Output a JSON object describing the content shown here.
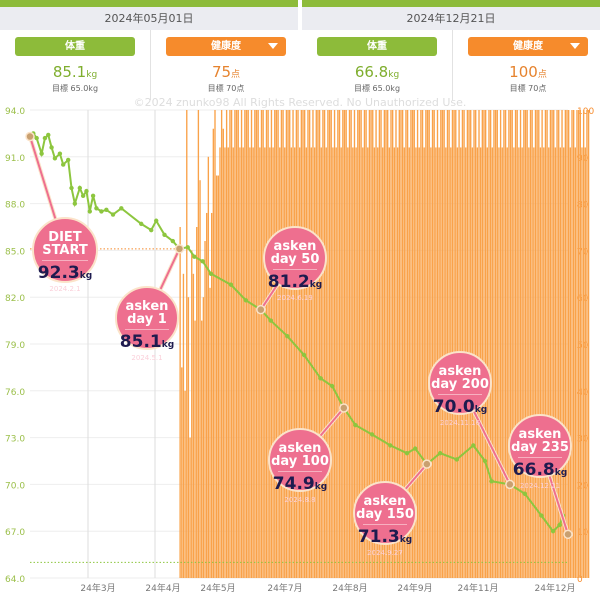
{
  "header": {
    "left_date": "2024年05月01日",
    "right_date": "2024年12月21日"
  },
  "cards": [
    {
      "label": "体重",
      "value": "85.1",
      "unit": "kg",
      "target": "目標 65.0kg",
      "color": "#8dbb3a",
      "dropdown": false
    },
    {
      "label": "健康度",
      "value": "75",
      "unit": "点",
      "target": "目標 70点",
      "color": "#f68b2c",
      "dropdown": true
    },
    {
      "label": "体重",
      "value": "66.8",
      "unit": "kg",
      "target": "目標 65.0kg",
      "color": "#8dbb3a",
      "dropdown": false
    },
    {
      "label": "健康度",
      "value": "100",
      "unit": "点",
      "target": "目標 70点",
      "color": "#f68b2c",
      "dropdown": true
    }
  ],
  "watermark": "©2024 znunko98  All Rights Reserved. No Unauthorized Use.",
  "chart_data": {
    "type": "line+bar",
    "x_range": [
      "2024-02-01",
      "2024-12-21"
    ],
    "x_ticks": [
      "24年3月",
      "24年4月",
      "24年5月",
      "24年7月",
      "24年8月",
      "24年9月",
      "24年11月",
      "24年12月"
    ],
    "y_left": {
      "range": [
        64,
        94
      ],
      "ticks": [
        "94.0",
        "91.0",
        "88.0",
        "85.0",
        "82.0",
        "79.0",
        "76.0",
        "73.0",
        "70.0",
        "67.0",
        "64.0"
      ],
      "color": "#9bbf4a"
    },
    "y_right": {
      "range": [
        0,
        100
      ],
      "ticks": [
        "100",
        "90",
        "80",
        "70",
        "60",
        "50",
        "40",
        "30",
        "20",
        "10",
        "0"
      ],
      "color": "#f68b2c"
    },
    "target_weight": 65.0,
    "weight_color": "#8dc63f",
    "bar_color": "#f9a24a",
    "weight": [
      [
        "2024-02-01",
        92.3
      ],
      [
        "2024-02-03",
        92.5
      ],
      [
        "2024-02-05",
        92.2
      ],
      [
        "2024-02-08",
        91.2
      ],
      [
        "2024-02-10",
        92.2
      ],
      [
        "2024-02-12",
        92.4
      ],
      [
        "2024-02-14",
        91.6
      ],
      [
        "2024-02-16",
        90.9
      ],
      [
        "2024-02-19",
        91.2
      ],
      [
        "2024-02-21",
        90.5
      ],
      [
        "2024-02-24",
        90.8
      ],
      [
        "2024-02-26",
        89.0
      ],
      [
        "2024-02-28",
        88.0
      ],
      [
        "2024-03-02",
        89.0
      ],
      [
        "2024-03-04",
        88.5
      ],
      [
        "2024-03-06",
        88.8
      ],
      [
        "2024-03-08",
        87.5
      ],
      [
        "2024-03-10",
        88.5
      ],
      [
        "2024-03-12",
        87.7
      ],
      [
        "2024-03-15",
        87.5
      ],
      [
        "2024-03-18",
        87.6
      ],
      [
        "2024-03-22",
        87.3
      ],
      [
        "2024-03-27",
        87.7
      ],
      [
        "2024-04-08",
        86.7
      ],
      [
        "2024-04-14",
        86.3
      ],
      [
        "2024-04-17",
        86.9
      ],
      [
        "2024-04-22",
        86.0
      ],
      [
        "2024-04-27",
        85.6
      ],
      [
        "2024-05-01",
        85.1
      ],
      [
        "2024-05-06",
        85.2
      ],
      [
        "2024-05-10",
        84.6
      ],
      [
        "2024-05-15",
        84.3
      ],
      [
        "2024-05-20",
        83.5
      ],
      [
        "2024-06-01",
        82.8
      ],
      [
        "2024-06-10",
        81.8
      ],
      [
        "2024-06-19",
        81.2
      ],
      [
        "2024-06-25",
        80.5
      ],
      [
        "2024-07-05",
        79.5
      ],
      [
        "2024-07-15",
        78.3
      ],
      [
        "2024-07-25",
        76.8
      ],
      [
        "2024-08-01",
        76.3
      ],
      [
        "2024-08-08",
        74.9
      ],
      [
        "2024-08-15",
        73.8
      ],
      [
        "2024-08-25",
        73.2
      ],
      [
        "2024-09-05",
        72.5
      ],
      [
        "2024-09-15",
        72.0
      ],
      [
        "2024-09-20",
        72.3
      ],
      [
        "2024-09-27",
        71.3
      ],
      [
        "2024-10-05",
        72.0
      ],
      [
        "2024-10-15",
        71.6
      ],
      [
        "2024-10-25",
        72.5
      ],
      [
        "2024-11-01",
        71.5
      ],
      [
        "2024-11-05",
        70.2
      ],
      [
        "2024-11-16",
        70.0
      ],
      [
        "2024-11-25",
        69.4
      ],
      [
        "2024-12-05",
        68.0
      ],
      [
        "2024-12-12",
        67.0
      ],
      [
        "2024-12-16",
        67.4
      ],
      [
        "2024-12-18",
        68.0
      ],
      [
        "2024-12-21",
        66.8
      ]
    ],
    "health_start": "2024-05-01",
    "health": [
      75,
      45,
      65,
      40,
      100,
      60,
      30,
      70,
      65,
      55,
      75,
      100,
      85,
      55,
      60,
      72,
      78,
      90,
      62,
      78,
      96,
      100,
      86,
      86,
      92,
      100,
      96,
      92,
      100,
      92,
      100,
      100,
      92,
      100,
      100,
      100,
      92,
      100,
      92,
      100,
      100,
      100,
      92,
      100,
      92,
      100,
      100,
      100,
      92,
      100,
      100,
      92,
      100,
      100,
      92,
      100,
      92,
      100,
      100,
      100,
      92,
      100,
      100,
      92,
      100,
      100,
      100,
      92,
      100,
      92,
      100,
      100,
      92,
      100,
      100,
      100,
      92,
      100,
      100,
      92,
      100,
      92,
      100,
      100,
      100,
      92,
      100,
      100,
      92,
      100,
      100,
      100,
      92,
      100,
      92,
      100,
      100,
      92,
      100,
      100,
      100,
      92,
      100,
      100,
      92,
      100,
      92,
      100,
      100,
      100,
      92,
      100,
      100,
      92,
      100,
      100,
      100,
      92,
      100,
      92,
      100,
      100,
      92,
      100,
      100,
      100,
      92,
      100,
      100,
      92,
      100,
      92,
      100,
      100,
      100,
      92,
      100,
      100,
      92,
      100,
      100,
      100,
      92,
      100,
      92,
      100,
      100,
      92,
      100,
      100,
      100,
      92,
      100,
      100,
      92,
      100,
      92,
      100,
      100,
      100,
      92,
      100,
      100,
      92,
      100,
      100,
      100,
      92,
      100,
      92,
      100,
      100,
      92,
      100,
      100,
      100,
      92,
      100,
      100,
      92,
      100,
      92,
      100,
      100,
      100,
      92,
      100,
      100,
      92,
      100,
      100,
      100,
      92,
      100,
      92,
      100,
      100,
      92,
      100,
      100,
      100,
      92,
      100,
      100,
      92,
      100,
      92,
      100,
      100,
      100,
      92,
      100,
      100,
      92,
      100,
      100,
      100,
      92,
      100,
      92,
      100,
      100,
      92,
      100,
      100,
      100,
      92,
      100,
      100,
      92,
      100,
      92,
      100,
      100,
      100,
      92,
      100,
      100,
      92,
      100,
      100,
      100,
      92,
      100,
      92,
      100,
      100
    ],
    "annotations": [
      {
        "title": [
          "DIET",
          "START"
        ],
        "value": "92.3",
        "unit": "kg",
        "date": "2024.2.1"
      },
      {
        "title": [
          "asken",
          "day 1"
        ],
        "value": "85.1",
        "unit": "kg",
        "date": "2024.5.1"
      },
      {
        "title": [
          "asken",
          "day 50"
        ],
        "value": "81.2",
        "unit": "kg",
        "date": "2024.6.19"
      },
      {
        "title": [
          "asken",
          "day 100"
        ],
        "value": "74.9",
        "unit": "kg",
        "date": "2024.8.8"
      },
      {
        "title": [
          "asken",
          "day 150"
        ],
        "value": "71.3",
        "unit": "kg",
        "date": "2024.9.27"
      },
      {
        "title": [
          "asken",
          "day 200"
        ],
        "value": "70.0",
        "unit": "kg",
        "date": "2024.11.16"
      },
      {
        "title": [
          "asken",
          "day 235"
        ],
        "value": "66.8",
        "unit": "kg",
        "date": "2024.12.21"
      }
    ]
  }
}
